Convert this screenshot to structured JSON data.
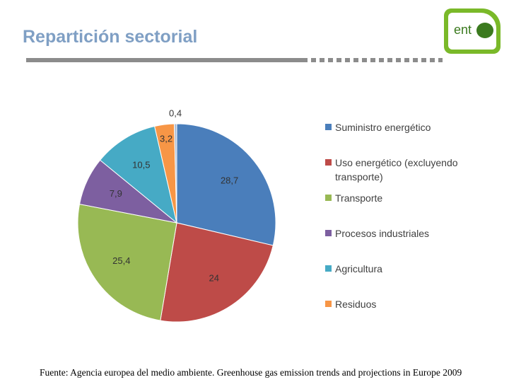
{
  "header": {
    "title": "Repartición sectorial",
    "logo_text": "ent"
  },
  "chart_data": {
    "type": "pie",
    "categories": [
      "Suministro energético",
      "Uso energético (excluyendo transporte)",
      "Transporte",
      "Procesos industriales",
      "Agricultura",
      "Residuos",
      null
    ],
    "values": [
      28.7,
      24,
      25.4,
      7.9,
      10.5,
      3.2,
      0.4
    ],
    "value_labels": [
      "28,7",
      "24",
      "25,4",
      "7,9",
      "10,5",
      "3,2",
      "0,4"
    ],
    "colors": [
      "#4a7ebb",
      "#be4b48",
      "#98b954",
      "#7d5fa0",
      "#46aac5",
      "#f79646",
      "#a9bcd6"
    ]
  },
  "footer": {
    "source": "Fuente: Agencia europea del medio ambiente. Greenhouse gas emission trends and projections in Europe 2009"
  }
}
